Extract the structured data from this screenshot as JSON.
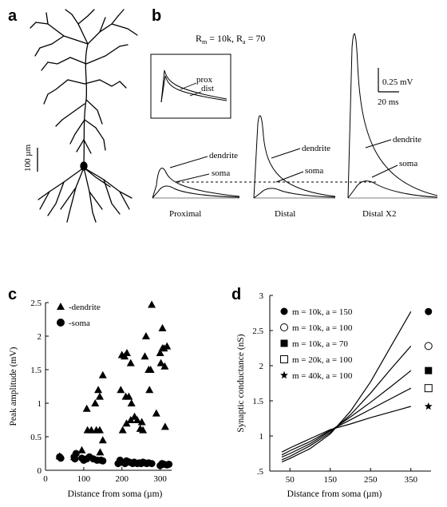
{
  "panels": {
    "a": {
      "label": "a",
      "scale_label": "100 µm"
    },
    "b": {
      "label": "b",
      "params": "R",
      "params_m_sub": "m",
      "params_mid": " = 10k, R",
      "params_a_sub": "a",
      "params_end": " = 70",
      "inset_labels": [
        "prox",
        "dist"
      ],
      "scale_mv": "0.25 mV",
      "scale_ms": "20 ms",
      "trace_labels": [
        "dendrite",
        "soma"
      ],
      "conditions": [
        "Proximal",
        "Distal",
        "Distal X2"
      ]
    }
  },
  "chart_data": [
    {
      "panel": "c",
      "type": "scatter",
      "xlabel": "Distance from soma (µm)",
      "ylabel": "Peak amplitude (mV)",
      "xlim": [
        0,
        330
      ],
      "ylim": [
        0,
        2.5
      ],
      "xticks": [
        0,
        100,
        200,
        300
      ],
      "yticks": [
        0,
        0.5,
        1,
        1.5,
        2,
        2.5
      ],
      "ytick_labels": [
        "0",
        "0.5",
        "1",
        "1.5",
        "2",
        "2.5"
      ],
      "legend": "top-left",
      "series": [
        {
          "name": "-dendrite",
          "marker": "triangle",
          "points": [
            [
              37,
              0.21
            ],
            [
              75,
              0.2
            ],
            [
              95,
              0.3
            ],
            [
              110,
              0.6
            ],
            [
              120,
              0.6
            ],
            [
              133,
              0.6
            ],
            [
              142,
              0.6
            ],
            [
              143,
              0.27
            ],
            [
              150,
              0.45
            ],
            [
              108,
              0.92
            ],
            [
              130,
              1.0
            ],
            [
              142,
              1.1
            ],
            [
              150,
              1.42
            ],
            [
              138,
              1.2
            ],
            [
              197,
              1.2
            ],
            [
              200,
              1.72
            ],
            [
              210,
              1.1
            ],
            [
              207,
              1.7
            ],
            [
              213,
              1.75
            ],
            [
              218,
              1.1
            ],
            [
              223,
              1.6
            ],
            [
              225,
              1.0
            ],
            [
              202,
              0.6
            ],
            [
              212,
              0.7
            ],
            [
              223,
              0.75
            ],
            [
              240,
              0.75
            ],
            [
              233,
              0.8
            ],
            [
              248,
              0.62
            ],
            [
              255,
              0.6
            ],
            [
              252,
              0.72
            ],
            [
              260,
              1.7
            ],
            [
              263,
              2.0
            ],
            [
              270,
              1.5
            ],
            [
              272,
              1.2
            ],
            [
              278,
              2.47
            ],
            [
              275,
              1.5
            ],
            [
              290,
              0.85
            ],
            [
              300,
              1.75
            ],
            [
              302,
              1.6
            ],
            [
              306,
              2.12
            ],
            [
              306,
              1.82
            ],
            [
              310,
              1.82
            ],
            [
              312,
              1.55
            ],
            [
              313,
              0.65
            ],
            [
              318,
              1.85
            ]
          ]
        },
        {
          "name": "-soma",
          "marker": "circle",
          "points": [
            [
              37,
              0.2
            ],
            [
              40,
              0.18
            ],
            [
              75,
              0.2
            ],
            [
              77,
              0.17
            ],
            [
              80,
              0.25
            ],
            [
              95,
              0.18
            ],
            [
              100,
              0.15
            ],
            [
              108,
              0.17
            ],
            [
              115,
              0.2
            ],
            [
              125,
              0.17
            ],
            [
              135,
              0.15
            ],
            [
              145,
              0.15
            ],
            [
              150,
              0.14
            ],
            [
              190,
              0.1
            ],
            [
              195,
              0.15
            ],
            [
              200,
              0.12
            ],
            [
              208,
              0.1
            ],
            [
              212,
              0.14
            ],
            [
              220,
              0.12
            ],
            [
              228,
              0.1
            ],
            [
              232,
              0.12
            ],
            [
              240,
              0.1
            ],
            [
              245,
              0.11
            ],
            [
              250,
              0.1
            ],
            [
              255,
              0.12
            ],
            [
              260,
              0.11
            ],
            [
              265,
              0.1
            ],
            [
              270,
              0.11
            ],
            [
              278,
              0.1
            ],
            [
              300,
              0.07
            ],
            [
              305,
              0.1
            ],
            [
              310,
              0.09
            ],
            [
              318,
              0.08
            ],
            [
              323,
              0.09
            ]
          ]
        }
      ]
    },
    {
      "panel": "d",
      "type": "line",
      "xlabel": "Distance from soma (µm)",
      "ylabel": "Synaptic conductance (nS)",
      "xlim": [
        0,
        400
      ],
      "ylim": [
        0.5,
        3
      ],
      "xticks": [
        50,
        150,
        250,
        350
      ],
      "yticks": [
        0.5,
        1,
        1.5,
        2,
        2.5,
        3
      ],
      "ytick_labels": [
        ".5",
        "1",
        "1.5",
        "2",
        "2.5",
        "3"
      ],
      "legend": "top-left",
      "x": [
        30,
        50,
        100,
        150,
        200,
        250,
        300,
        350
      ],
      "series": [
        {
          "name": "m = 10k, a = 150",
          "marker": "filled-circle",
          "values": [
            0.63,
            0.68,
            0.82,
            1.03,
            1.35,
            1.77,
            2.27,
            2.77
          ]
        },
        {
          "name": "m = 10k, a = 100",
          "marker": "open-circle",
          "values": [
            0.66,
            0.71,
            0.86,
            1.05,
            1.3,
            1.61,
            1.95,
            2.28
          ]
        },
        {
          "name": "m = 10k, a = 70",
          "marker": "filled-square",
          "values": [
            0.7,
            0.75,
            0.89,
            1.07,
            1.27,
            1.48,
            1.7,
            1.93
          ]
        },
        {
          "name": "m = 20k, a = 100",
          "marker": "open-square",
          "values": [
            0.73,
            0.79,
            0.92,
            1.08,
            1.23,
            1.38,
            1.53,
            1.68
          ]
        },
        {
          "name": "m = 40k, a = 100",
          "marker": "filled-star",
          "values": [
            0.77,
            0.83,
            0.96,
            1.09,
            1.17,
            1.26,
            1.34,
            1.42
          ]
        }
      ]
    }
  ]
}
